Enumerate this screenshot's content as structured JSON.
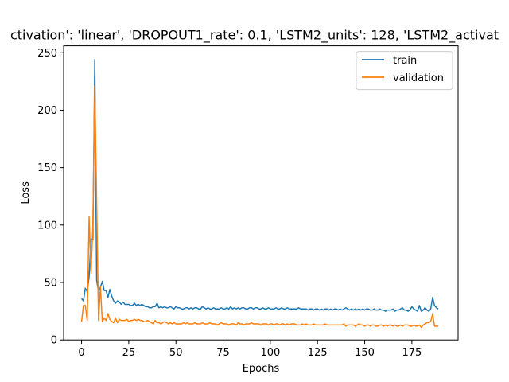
{
  "chart_data": {
    "type": "line",
    "title": "ctivation': 'linear', 'DROPOUT1_rate': 0.1, 'LSTM2_units': 128, 'LSTM2_activat",
    "xlabel": "Epochs",
    "ylabel": "Loss",
    "xlim": [
      -9.5,
      199.5
    ],
    "ylim": [
      0,
      256
    ],
    "xticks": [
      0,
      25,
      50,
      75,
      100,
      125,
      150,
      175
    ],
    "yticks": [
      0,
      50,
      100,
      150,
      200,
      250
    ],
    "grid": false,
    "legend_position": "top-right",
    "x": [
      0,
      1,
      2,
      3,
      4,
      5,
      6,
      7,
      8,
      9,
      10,
      11,
      12,
      13,
      14,
      15,
      16,
      17,
      18,
      19,
      20,
      21,
      22,
      23,
      24,
      25,
      26,
      27,
      28,
      29,
      30,
      31,
      32,
      33,
      34,
      35,
      36,
      37,
      38,
      39,
      40,
      41,
      42,
      43,
      44,
      45,
      46,
      47,
      48,
      49,
      50,
      51,
      52,
      53,
      54,
      55,
      56,
      57,
      58,
      59,
      60,
      61,
      62,
      63,
      64,
      65,
      66,
      67,
      68,
      69,
      70,
      71,
      72,
      73,
      74,
      75,
      76,
      77,
      78,
      79,
      80,
      81,
      82,
      83,
      84,
      85,
      86,
      87,
      88,
      89,
      90,
      91,
      92,
      93,
      94,
      95,
      96,
      97,
      98,
      99,
      100,
      101,
      102,
      103,
      104,
      105,
      106,
      107,
      108,
      109,
      110,
      111,
      112,
      113,
      114,
      115,
      116,
      117,
      118,
      119,
      120,
      121,
      122,
      123,
      124,
      125,
      126,
      127,
      128,
      129,
      130,
      131,
      132,
      133,
      134,
      135,
      136,
      137,
      138,
      139,
      140,
      141,
      142,
      143,
      144,
      145,
      146,
      147,
      148,
      149,
      150,
      151,
      152,
      153,
      154,
      155,
      156,
      157,
      158,
      159,
      160,
      161,
      162,
      163,
      164,
      165,
      166,
      167,
      168,
      169,
      170,
      171,
      172,
      173,
      174,
      175,
      176,
      177,
      178,
      179,
      180,
      181,
      182,
      183,
      184,
      185,
      186,
      187,
      188,
      189
    ],
    "series": [
      {
        "name": "train",
        "color": "#1f77b4",
        "values": [
          36,
          34,
          45,
          42,
          55,
          88,
          87,
          244,
          52,
          42,
          46,
          51,
          43,
          43,
          37,
          44,
          38,
          34,
          32,
          34,
          33,
          31,
          33,
          31,
          31,
          31,
          30,
          30,
          32,
          30,
          31,
          30,
          31,
          30,
          29,
          29,
          28,
          28,
          29,
          29,
          32,
          28,
          29,
          28,
          29,
          28,
          28,
          29,
          28,
          27,
          29,
          28,
          28,
          27,
          27,
          28,
          28,
          27,
          28,
          27,
          28,
          28,
          27,
          27,
          29,
          28,
          27,
          28,
          27,
          27,
          28,
          27,
          27,
          27,
          28,
          27,
          27,
          28,
          27,
          29,
          27,
          28,
          27,
          28,
          27,
          28,
          28,
          27,
          27,
          28,
          28,
          27,
          28,
          28,
          27,
          27,
          28,
          27,
          27,
          28,
          27,
          27,
          27,
          28,
          27,
          27,
          28,
          27,
          27,
          28,
          27,
          27,
          27,
          27,
          27,
          28,
          27,
          27,
          27,
          27,
          26,
          27,
          27,
          26,
          27,
          27,
          26,
          27,
          26,
          27,
          27,
          26,
          27,
          26,
          27,
          27,
          26,
          27,
          26,
          27,
          28,
          27,
          26,
          27,
          26,
          27,
          26,
          27,
          26,
          27,
          26,
          27,
          27,
          26,
          26,
          27,
          26,
          26,
          27,
          26,
          26,
          25,
          26,
          26,
          26,
          27,
          25,
          26,
          26,
          27,
          28,
          26,
          26,
          25,
          26,
          29,
          27,
          26,
          25,
          30,
          25,
          26,
          28,
          26,
          25,
          27,
          37,
          30,
          28,
          27
        ]
      },
      {
        "name": "validation",
        "color": "#ff7f0e",
        "values": [
          16,
          30,
          30,
          17,
          107,
          58,
          100,
          221,
          120,
          17,
          46,
          16,
          19,
          17,
          23,
          18,
          16,
          15,
          19,
          15,
          18,
          17,
          17,
          17,
          18,
          16,
          17,
          17,
          18,
          17,
          18,
          17,
          17,
          16,
          16,
          17,
          16,
          15,
          14,
          17,
          15,
          15,
          14,
          15,
          16,
          15,
          14,
          15,
          14,
          15,
          14,
          14,
          14,
          14,
          15,
          14,
          15,
          14,
          14,
          14,
          15,
          14,
          14,
          14,
          15,
          14,
          14,
          14,
          15,
          14,
          14,
          14,
          13,
          14,
          15,
          14,
          14,
          14,
          13,
          14,
          14,
          14,
          13,
          15,
          14,
          14,
          13,
          14,
          14,
          14,
          15,
          14,
          14,
          14,
          14,
          13,
          14,
          14,
          14,
          13,
          14,
          14,
          13,
          14,
          14,
          13,
          14,
          14,
          13,
          14,
          13,
          14,
          14,
          14,
          13,
          13,
          13,
          14,
          13,
          14,
          13,
          13,
          13,
          14,
          13,
          13,
          13,
          13,
          13,
          14,
          13,
          13,
          13,
          13,
          13,
          13,
          13,
          13,
          13,
          14,
          12,
          13,
          13,
          13,
          13,
          12,
          13,
          14,
          13,
          13,
          12,
          13,
          13,
          12,
          13,
          13,
          12,
          12,
          13,
          13,
          12,
          13,
          12,
          13,
          13,
          12,
          13,
          12,
          12,
          13,
          12,
          13,
          13,
          13,
          12,
          12,
          13,
          12,
          12,
          13,
          11,
          13,
          14,
          15,
          15,
          16,
          23,
          12,
          12,
          12
        ]
      }
    ]
  }
}
